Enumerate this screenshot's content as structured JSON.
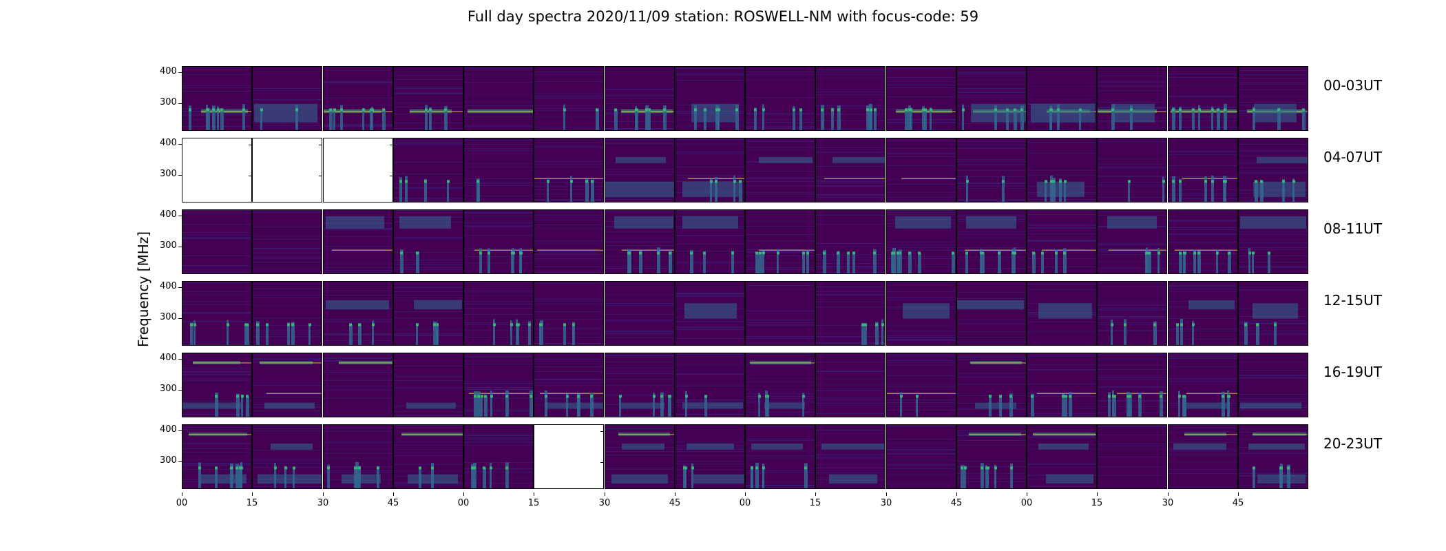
{
  "title": "Full day spectra 2020/11/09 station: ROSWELL-NM with focus-code: 59",
  "ylabel": "Frequency [MHz]",
  "colors": {
    "background": "#440154",
    "noise": "#3b1c73",
    "teal": "#31688e",
    "green": "#35b779",
    "yellow": "#fde725",
    "blank": "#ffffff"
  },
  "chart_data": {
    "type": "heatmap",
    "title": "Full day spectra 2020/11/09 station: ROSWELL-NM with focus-code: 59",
    "ylabel": "Frequency [MHz]",
    "y_ticks": [
      "300",
      "400"
    ],
    "ylim": [
      210,
      420
    ],
    "x_ticks": [
      "00",
      "15",
      "30",
      "45",
      "00",
      "15",
      "30",
      "45",
      "00",
      "15",
      "30",
      "45",
      "00",
      "15",
      "30",
      "45"
    ],
    "colormap": "viridis",
    "rows": [
      {
        "label": "00-03UT",
        "blank_panels": [],
        "bright_bands_mhz": [
          [
            270,
            282
          ],
          [
            240,
            300
          ]
        ],
        "burst_panels": [
          0,
          1,
          2,
          3,
          5,
          6,
          7,
          8,
          9,
          10,
          11,
          12,
          13,
          14,
          15
        ]
      },
      {
        "label": "04-07UT",
        "blank_panels": [
          0,
          1,
          2
        ],
        "bright_bands_mhz": [
          [
            340,
            360
          ],
          [
            290,
            292
          ],
          [
            230,
            280
          ]
        ],
        "burst_panels": [
          3,
          4,
          5,
          7,
          11,
          12,
          13,
          14,
          15
        ]
      },
      {
        "label": "08-11UT",
        "blank_panels": [],
        "bright_bands_mhz": [
          [
            360,
            400
          ],
          [
            290,
            292
          ]
        ],
        "burst_panels": [
          3,
          4,
          6,
          7,
          8,
          9,
          10,
          11,
          12,
          13,
          14,
          15
        ]
      },
      {
        "label": "12-15UT",
        "blank_panels": [],
        "bright_bands_mhz": [
          [
            300,
            350
          ],
          [
            330,
            360
          ]
        ],
        "burst_panels": [
          0,
          1,
          2,
          3,
          4,
          5,
          9,
          13,
          14,
          15
        ]
      },
      {
        "label": "16-19UT",
        "blank_panels": [],
        "bright_bands_mhz": [
          [
            385,
            395
          ],
          [
            290,
            292
          ],
          [
            240,
            260
          ]
        ],
        "burst_panels": [
          0,
          4,
          5,
          6,
          7,
          8,
          10,
          11,
          12,
          13,
          14
        ]
      },
      {
        "label": "20-23UT",
        "blank_panels": [
          5
        ],
        "bright_bands_mhz": [
          [
            385,
            395
          ],
          [
            340,
            360
          ],
          [
            230,
            260
          ]
        ],
        "burst_panels": [
          0,
          1,
          2,
          3,
          4,
          7,
          8,
          11,
          15
        ]
      }
    ]
  }
}
